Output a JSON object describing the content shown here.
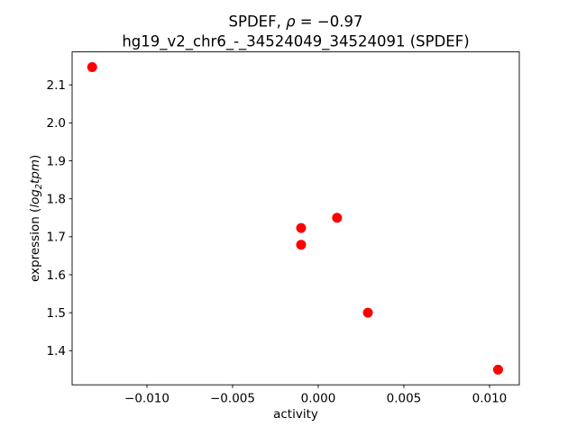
{
  "figure": {
    "title": {
      "line1_prefix": "SPDEF, ",
      "line1_rho": "ρ",
      "line1_suffix": " = −0.97",
      "line2": "hg19_v2_chr6_-_34524049_34524091 (SPDEF)"
    },
    "xlabel": "activity",
    "ylabel": {
      "prefix": "expression (",
      "math_main": "log",
      "math_sub": "2",
      "math_tail": "tpm",
      "suffix": ")"
    }
  },
  "chart_data": {
    "type": "scatter",
    "title": "SPDEF, ρ = −0.97",
    "subtitle": "hg19_v2_chr6_-_34524049_34524091 (SPDEF)",
    "xlabel": "activity",
    "ylabel": "expression (log2tpm)",
    "correlation_rho": -0.97,
    "marker": {
      "shape": "circle",
      "color": "#ff0000",
      "radius_px": 5.5
    },
    "points": [
      {
        "x": -0.0132,
        "y": 2.147
      },
      {
        "x": -0.001,
        "y": 1.723
      },
      {
        "x": -0.001,
        "y": 1.679
      },
      {
        "x": 0.0011,
        "y": 1.75
      },
      {
        "x": 0.0029,
        "y": 1.5
      },
      {
        "x": 0.0105,
        "y": 1.35
      }
    ],
    "xlim": [
      -0.01437,
      0.01174
    ],
    "ylim": [
      1.31,
      2.187
    ],
    "x_ticks": [
      {
        "value": -0.01,
        "label": "−0.010"
      },
      {
        "value": -0.005,
        "label": "−0.005"
      },
      {
        "value": 0.0,
        "label": "0.000"
      },
      {
        "value": 0.005,
        "label": "0.005"
      },
      {
        "value": 0.01,
        "label": "0.010"
      }
    ],
    "y_ticks": [
      {
        "value": 1.4,
        "label": "1.4"
      },
      {
        "value": 1.5,
        "label": "1.5"
      },
      {
        "value": 1.6,
        "label": "1.6"
      },
      {
        "value": 1.7,
        "label": "1.7"
      },
      {
        "value": 1.8,
        "label": "1.8"
      },
      {
        "value": 1.9,
        "label": "1.9"
      },
      {
        "value": 2.0,
        "label": "2.0"
      },
      {
        "value": 2.1,
        "label": "2.1"
      }
    ],
    "grid": false,
    "legend": null
  }
}
